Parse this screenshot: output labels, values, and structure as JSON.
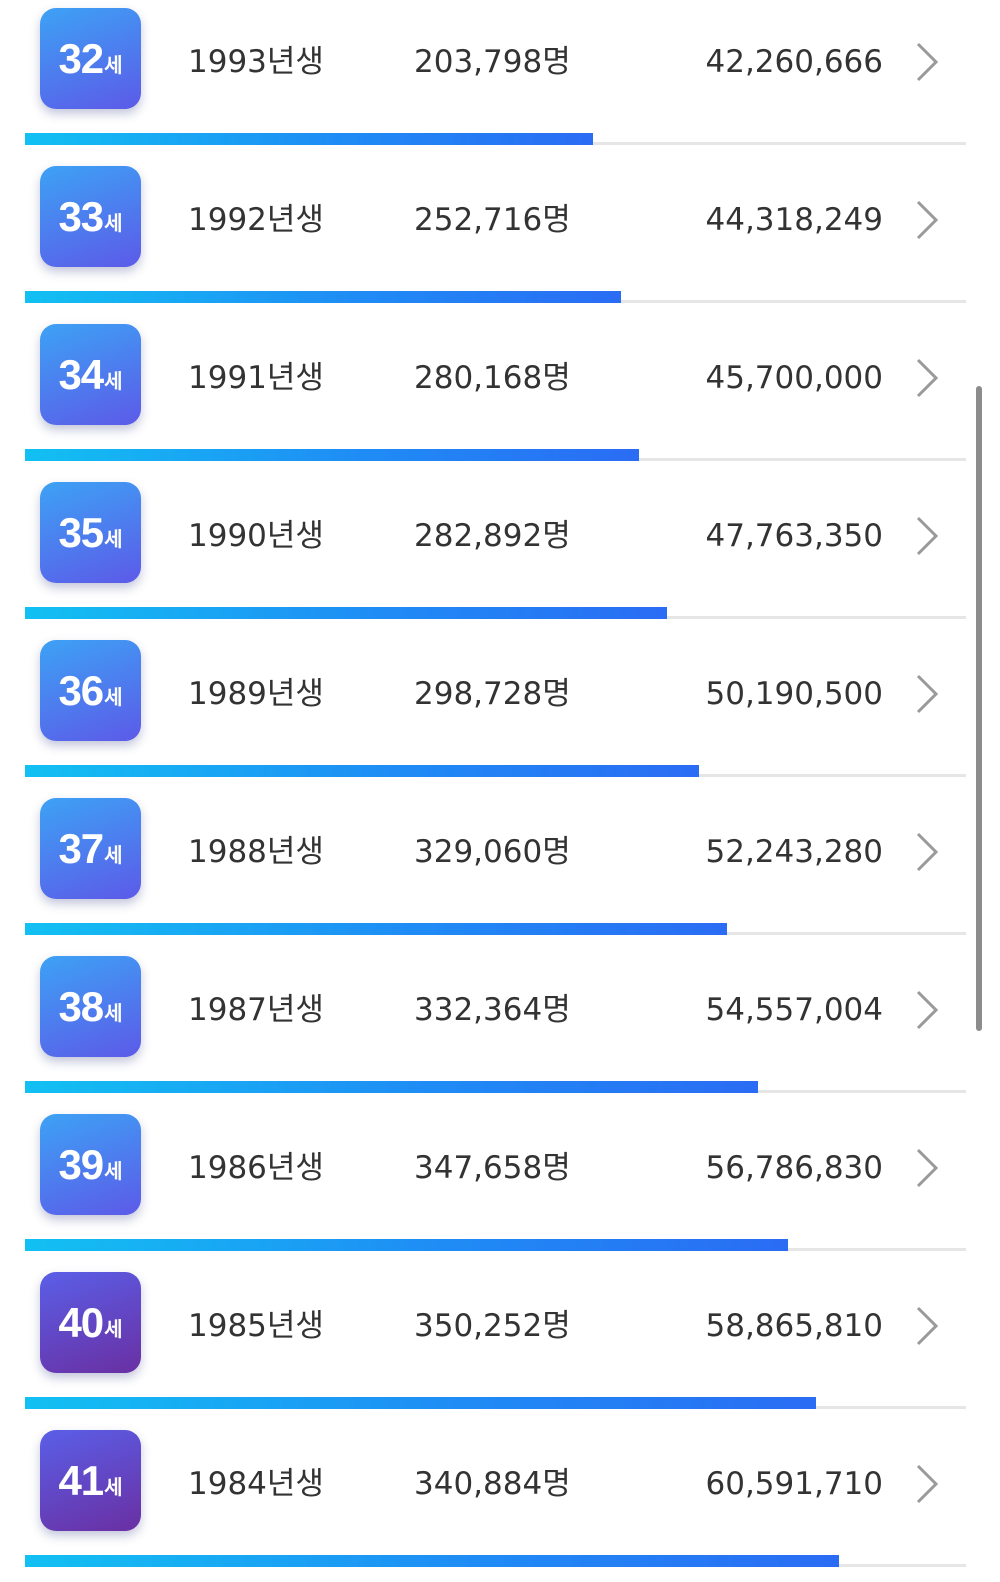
{
  "colors": {
    "badge_gradient_blue": [
      "#3da2f5",
      "#5c5ae8"
    ],
    "badge_gradient_purple": [
      "#5a5fe8",
      "#6a2fa2"
    ],
    "bar_gradient": [
      "#12c0f2",
      "#2a6cf4"
    ],
    "text": "#333333",
    "track": "#e6e6e6"
  },
  "list": {
    "rows": [
      {
        "age": "32",
        "unit": "세",
        "year": "1993년생",
        "count": "203,798명",
        "amount": "42,260,666",
        "bar_fraction": 0.604,
        "style": "blue"
      },
      {
        "age": "33",
        "unit": "세",
        "year": "1992년생",
        "count": "252,716명",
        "amount": "44,318,249",
        "bar_fraction": 0.633,
        "style": "blue"
      },
      {
        "age": "34",
        "unit": "세",
        "year": "1991년생",
        "count": "280,168명",
        "amount": "45,700,000",
        "bar_fraction": 0.653,
        "style": "blue"
      },
      {
        "age": "35",
        "unit": "세",
        "year": "1990년생",
        "count": "282,892명",
        "amount": "47,763,350",
        "bar_fraction": 0.682,
        "style": "blue"
      },
      {
        "age": "36",
        "unit": "세",
        "year": "1989년생",
        "count": "298,728명",
        "amount": "50,190,500",
        "bar_fraction": 0.716,
        "style": "blue"
      },
      {
        "age": "37",
        "unit": "세",
        "year": "1988년생",
        "count": "329,060명",
        "amount": "52,243,280",
        "bar_fraction": 0.746,
        "style": "blue"
      },
      {
        "age": "38",
        "unit": "세",
        "year": "1987년생",
        "count": "332,364명",
        "amount": "54,557,004",
        "bar_fraction": 0.779,
        "style": "blue"
      },
      {
        "age": "39",
        "unit": "세",
        "year": "1986년생",
        "count": "347,658명",
        "amount": "56,786,830",
        "bar_fraction": 0.811,
        "style": "blue"
      },
      {
        "age": "40",
        "unit": "세",
        "year": "1985년생",
        "count": "350,252명",
        "amount": "58,865,810",
        "bar_fraction": 0.841,
        "style": "purple"
      },
      {
        "age": "41",
        "unit": "세",
        "year": "1984년생",
        "count": "340,884명",
        "amount": "60,591,710",
        "bar_fraction": 0.865,
        "style": "purple"
      }
    ]
  }
}
